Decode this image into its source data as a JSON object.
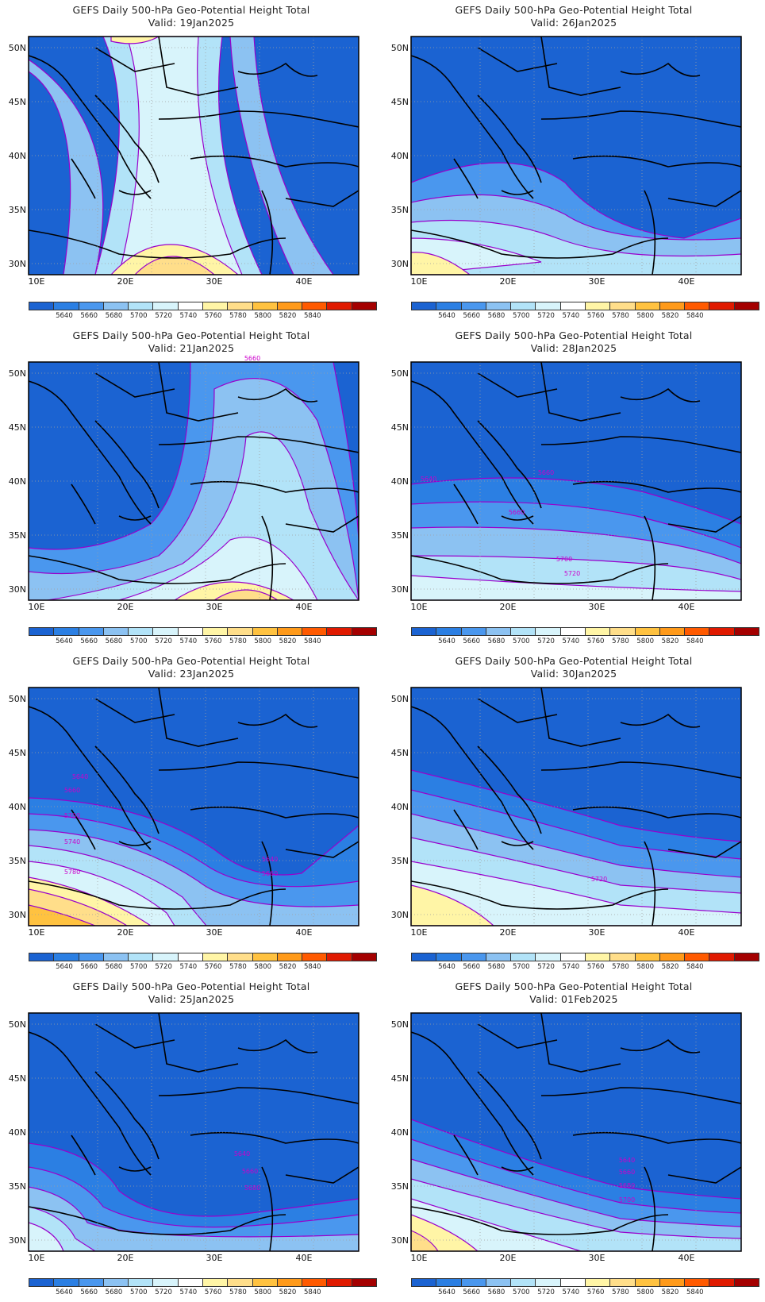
{
  "title_line1": "GEFS Daily 500-hPa Geo-Potential Height Total",
  "valid_prefix": "Valid:",
  "lat_labels": [
    "50N",
    "45N",
    "40N",
    "35N",
    "30N"
  ],
  "lon_labels": [
    "10E",
    "20E",
    "30E",
    "40E"
  ],
  "colorbar": {
    "colors": [
      "#1b63d2",
      "#2b7fe3",
      "#4a97ee",
      "#8cc2f2",
      "#b2e3f8",
      "#d8f4fb",
      "#ffffff",
      "#fff5a6",
      "#ffde8a",
      "#ffc240",
      "#ff9a1a",
      "#ff5a00",
      "#e01a00",
      "#a40000"
    ],
    "labels": [
      "5640",
      "5660",
      "5680",
      "5700",
      "5720",
      "5740",
      "5760",
      "5780",
      "5800",
      "5820",
      "5840"
    ]
  },
  "panels": [
    {
      "id": "p1",
      "valid": "19Jan2025",
      "contour_labels": []
    },
    {
      "id": "p2",
      "valid": "26Jan2025",
      "contour_labels": []
    },
    {
      "id": "p3",
      "valid": "21Jan2025",
      "contour_labels": [
        "5660"
      ]
    },
    {
      "id": "p4",
      "valid": "28Jan2025",
      "contour_labels": [
        "5640",
        "5660",
        "5660",
        "5700",
        "5720"
      ]
    },
    {
      "id": "p5",
      "valid": "23Jan2025",
      "contour_labels": [
        "5640",
        "5660",
        "5700",
        "5740",
        "5780",
        "5640",
        "5660"
      ]
    },
    {
      "id": "p6",
      "valid": "30Jan2025",
      "contour_labels": [
        "5720"
      ]
    },
    {
      "id": "p7",
      "valid": "25Jan2025",
      "contour_labels": [
        "5640",
        "5660",
        "5680"
      ]
    },
    {
      "id": "p8",
      "valid": "01Feb2025",
      "contour_labels": [
        "5640",
        "5660",
        "5680",
        "5700"
      ]
    }
  ],
  "colors": {
    "contour": "#9900cc",
    "coast": "#000000",
    "grid": "#a0a0a0"
  }
}
